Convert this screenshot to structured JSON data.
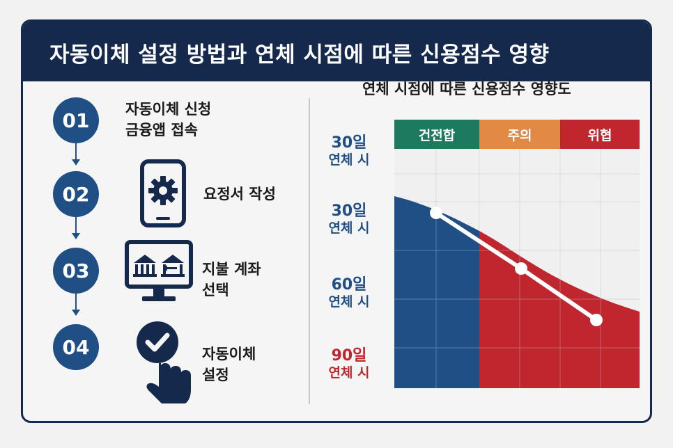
{
  "title": "자동이체 설정 방법과 연체 시점에 따른 신용점수 영향",
  "steps": [
    {
      "number": "01",
      "label_line1": "자동이체 신청",
      "label_line2": "금융앱 접속"
    },
    {
      "number": "02",
      "label_line1": "요정서 작성",
      "label_line2": ""
    },
    {
      "number": "03",
      "label_line1": "지불 계좌",
      "label_line2": "선택"
    },
    {
      "number": "04",
      "label_line1": "자동이체",
      "label_line2": "설정"
    }
  ],
  "icons": [
    "smartphone-gear-icon",
    "monitor-bank-transfer-icon",
    "check-hand-pointer-icon"
  ],
  "chart": {
    "title": "연체 시점에 따른 신용점수 영향도",
    "zones": [
      {
        "label": "건전합",
        "color": "#1e7a5f"
      },
      {
        "label": "주의",
        "color": "#e08a45"
      },
      {
        "label": "위협",
        "color": "#c0262d"
      }
    ],
    "y_labels": [
      {
        "line1": "30일",
        "line2": "연체 시",
        "color": "#1f4f85"
      },
      {
        "line1": "30일",
        "line2": "연체 시",
        "color": "#1f4f85"
      },
      {
        "line1": "60일",
        "line2": "연체 시",
        "color": "#1f4f85"
      },
      {
        "line1": "90일",
        "line2": "연체 시",
        "color": "#c0262d"
      }
    ]
  },
  "colors": {
    "navy": "#15294d",
    "blue": "#1f4f85",
    "red": "#c0262d",
    "green": "#1e7a5f",
    "orange": "#e08a45"
  }
}
